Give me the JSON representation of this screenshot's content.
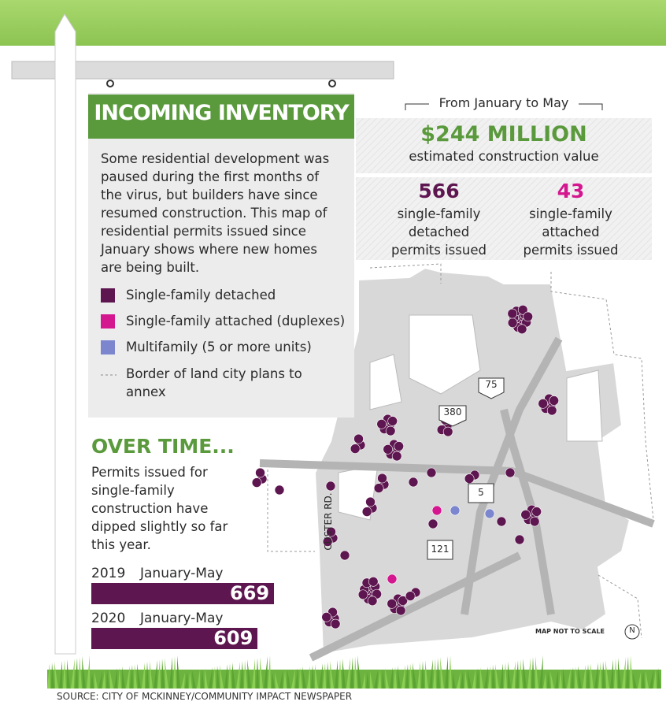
{
  "header": {
    "title": "INCOMING INVENTORY",
    "body": "Some residential development was paused during the first months of the virus, but builders have since resumed construction. This map of residential permits issued since January shows where new homes are being built."
  },
  "legend": [
    {
      "label": "Single-family detached",
      "color": "#5e1650"
    },
    {
      "label": "Single-family attached (duplexes)",
      "color": "#d4168f"
    },
    {
      "label": "Multifamily (5 or more units)",
      "color": "#7b86cf"
    },
    {
      "label": "Border of land city plans to annex"
    }
  ],
  "stats": {
    "period": "From January to May",
    "value": "$244 MILLION",
    "value_caption": "estimated construction value",
    "detached": {
      "value": 566,
      "caption": "single-family detached permits issued"
    },
    "attached": {
      "value": 43,
      "caption": "single-family attached permits issued"
    }
  },
  "over_time": {
    "title": "OVER TIME...",
    "body": "Permits issued for single-family construction have dipped slightly so far this year.",
    "chart_data": {
      "type": "bar",
      "categories": [
        "2019",
        "2020"
      ],
      "period": "January-May",
      "values": [
        669,
        609
      ],
      "color": "#5e1650"
    }
  },
  "map": {
    "labels": [
      "75",
      "380",
      "5",
      "121",
      "CUSTER RD.",
      "MAP NOT TO SCALE",
      "N"
    ]
  },
  "source": "SOURCE: CITY OF MCKINNEY/COMMUNITY IMPACT NEWSPAPER"
}
